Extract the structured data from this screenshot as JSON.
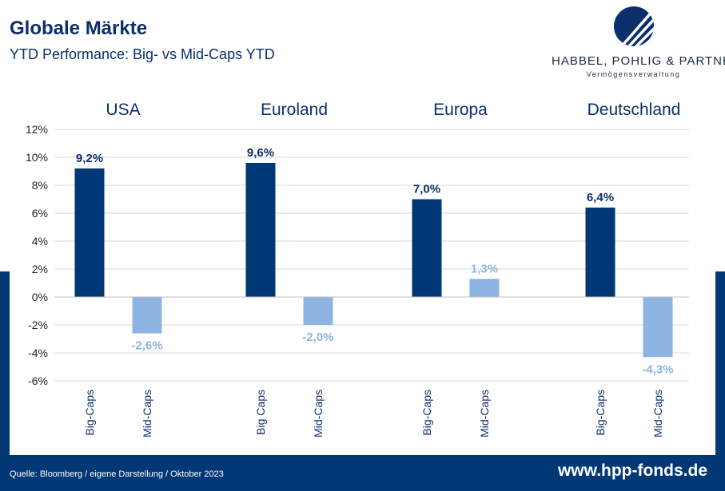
{
  "header": {
    "title": "Globale Märkte",
    "subtitle": "YTD Performance: Big- vs Mid-Caps YTD"
  },
  "logo": {
    "name": "HABBEL, POHLIG & PARTNER",
    "tagline": "Vermögensverwaltung"
  },
  "footer": {
    "source": "Quelle: Bloomberg / eigene Darstellung / Oktober 2023",
    "url": "www.hpp-fonds.de"
  },
  "colors": {
    "big_caps": "#003876",
    "mid_caps": "#8db4e2",
    "brand": "#003876"
  },
  "chart_data": {
    "type": "bar",
    "title": "",
    "xlabel": "",
    "ylabel": "",
    "ylim": [
      -6,
      12
    ],
    "yticks": [
      "12%",
      "10%",
      "8%",
      "6%",
      "4%",
      "2%",
      "0%",
      "-2%",
      "-4%",
      "-6%"
    ],
    "grid": true,
    "groups": [
      {
        "name": "USA",
        "bars": [
          {
            "label": "Big-Caps",
            "value": 9.2,
            "text": "9,2%"
          },
          {
            "label": "Mid-Caps",
            "value": -2.6,
            "text": "-2,6%"
          }
        ]
      },
      {
        "name": "Euroland",
        "bars": [
          {
            "label": "Big Caps",
            "value": 9.6,
            "text": "9,6%"
          },
          {
            "label": "Mid-Caps",
            "value": -2.0,
            "text": "-2,0%"
          }
        ]
      },
      {
        "name": "Europa",
        "bars": [
          {
            "label": "Big-Caps",
            "value": 7.0,
            "text": "7,0%"
          },
          {
            "label": "Mid-Caps",
            "value": 1.3,
            "text": "1,3%"
          }
        ]
      },
      {
        "name": "Deutschland",
        "bars": [
          {
            "label": "Big-Caps",
            "value": 6.4,
            "text": "6,4%"
          },
          {
            "label": "Mid-Caps",
            "value": -4.3,
            "text": "-4,3%"
          }
        ]
      }
    ]
  }
}
